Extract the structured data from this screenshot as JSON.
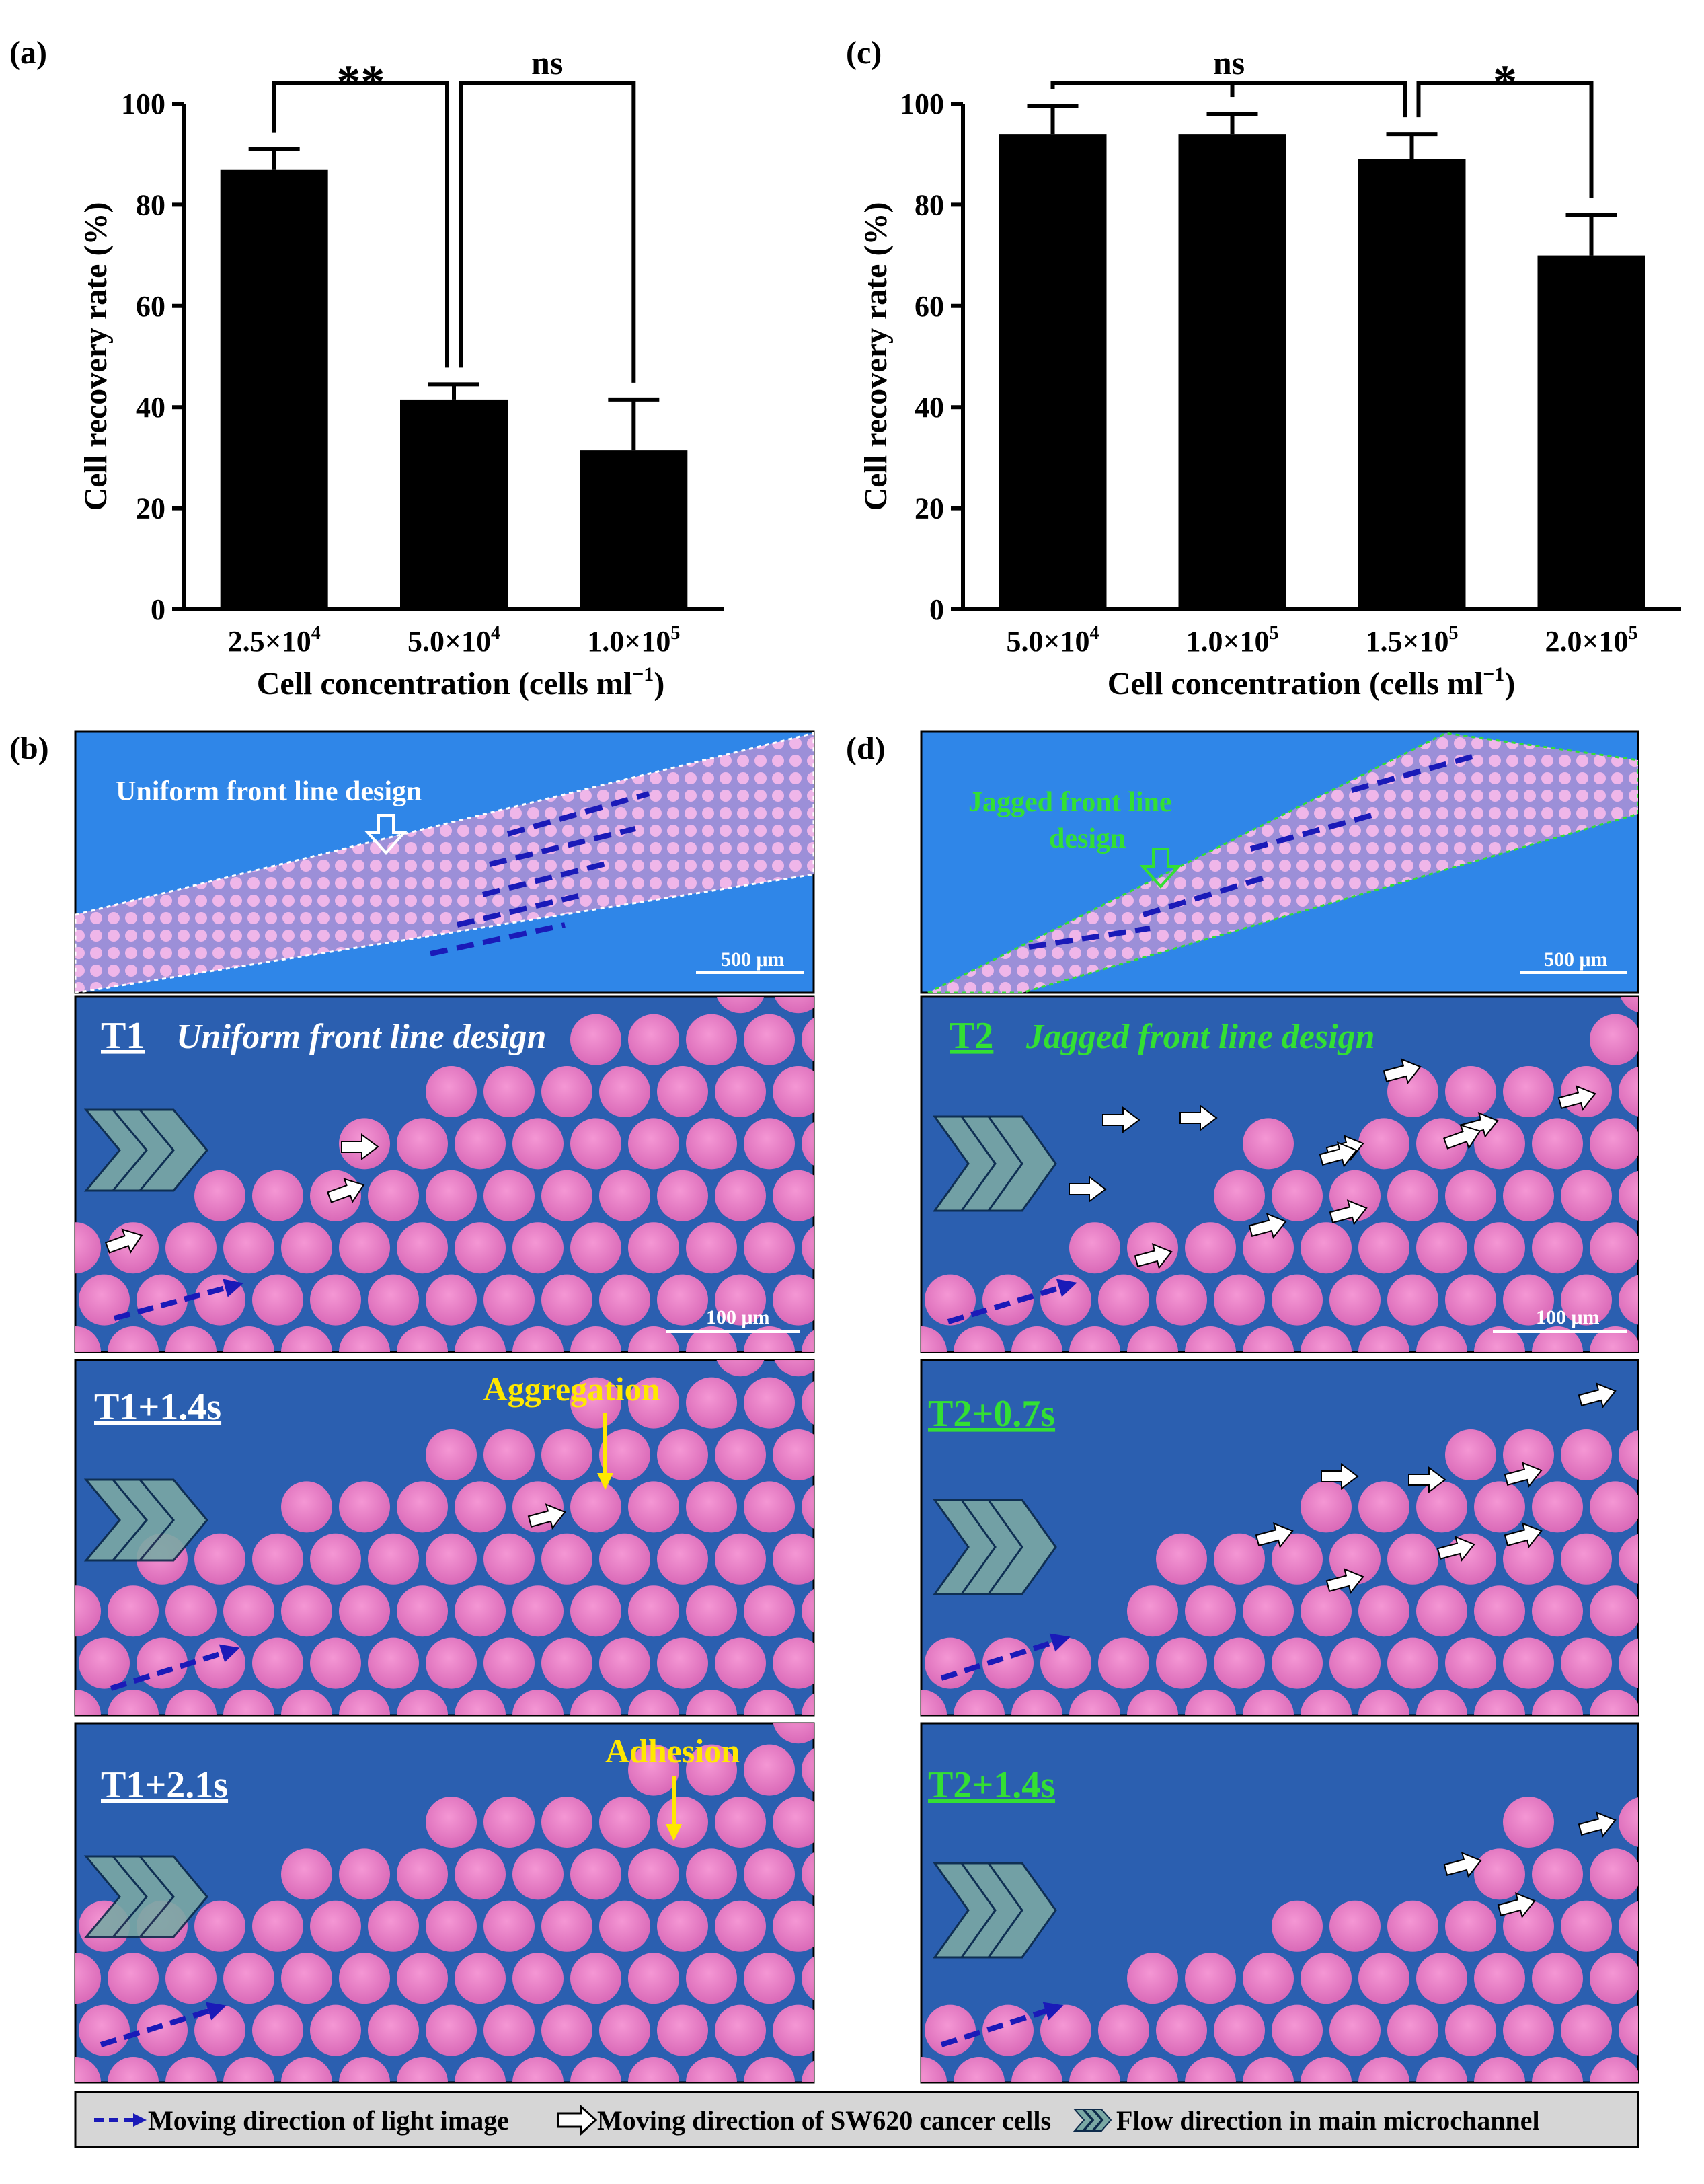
{
  "chart_data": [
    {
      "panel": "(a)",
      "type": "bar",
      "categories": [
        "2.5×10^4",
        "5.0×10^4",
        "1.0×10^5"
      ],
      "category_labels": [
        {
          "mantissa": "2.5×10",
          "exp": "4"
        },
        {
          "mantissa": "5.0×10",
          "exp": "4"
        },
        {
          "mantissa": "1.0×10",
          "exp": "5"
        }
      ],
      "values": [
        87,
        41.5,
        31.5
      ],
      "errors": [
        4,
        3,
        10
      ],
      "ylabel": "Cell recovery rate (%)",
      "xlabel_main": "Cell concentration (cells ml",
      "xlabel_exp": "−1",
      "xlabel_tail": ")",
      "ylim": [
        0,
        100
      ],
      "yticks": [
        "0",
        "20",
        "40",
        "60",
        "80",
        "100"
      ],
      "bar_color": "#000000",
      "significance": [
        {
          "from": 0,
          "to": 1,
          "label": "**"
        },
        {
          "from": 1,
          "to": 2,
          "label": "ns"
        }
      ]
    },
    {
      "panel": "(c)",
      "type": "bar",
      "categories": [
        "5.0×10^4",
        "1.0×10^5",
        "1.5×10^5",
        "2.0×10^5"
      ],
      "category_labels": [
        {
          "mantissa": "5.0×10",
          "exp": "4"
        },
        {
          "mantissa": "1.0×10",
          "exp": "5"
        },
        {
          "mantissa": "1.5×10",
          "exp": "5"
        },
        {
          "mantissa": "2.0×10",
          "exp": "5"
        }
      ],
      "values": [
        94,
        94,
        89,
        70
      ],
      "errors": [
        5.5,
        4,
        5,
        8
      ],
      "ylabel": "Cell recovery rate (%)",
      "xlabel_main": "Cell concentration (cells ml",
      "xlabel_exp": "−1",
      "xlabel_tail": ")",
      "ylim": [
        0,
        100
      ],
      "yticks": [
        "0",
        "20",
        "40",
        "60",
        "80",
        "100"
      ],
      "bar_color": "#000000",
      "significance": [
        {
          "from": 0,
          "to": 2,
          "label": "ns"
        },
        {
          "from": 2,
          "to": 3,
          "label": "*"
        }
      ]
    }
  ],
  "panels": {
    "a": "(a)",
    "b": "(b)",
    "c": "(c)",
    "d": "(d)"
  },
  "images": {
    "b_overview_label": "Uniform front line design",
    "b_scale_overview": "500 μm",
    "b_frame1_tag": "T1",
    "b_frame1_title": "Uniform front line design",
    "b_scale_frame": "100 μm",
    "b_frame2_tag": "T1+1.4s",
    "b_frame2_note": "Aggregation",
    "b_frame3_tag": "T1+2.1s",
    "b_frame3_note": "Adhesion",
    "d_overview_label_1": "Jagged front line",
    "d_overview_label_2": "design",
    "d_scale_overview": "500 μm",
    "d_frame1_tag": "T2",
    "d_frame1_title": "Jagged front line design",
    "d_scale_frame": "100 μm",
    "d_frame2_tag": "T2+0.7s",
    "d_frame3_tag": "T2+1.4s"
  },
  "colors": {
    "channel_blue": "#2f86e8",
    "frame_blue": "#2b5fb0",
    "droplet_pink": "#f07ec6",
    "green_text": "#33e033",
    "yellow_text": "#ffe800",
    "arrow_navy": "#1a1ab8",
    "chevron": "#7aa8a4"
  },
  "legend": {
    "item1": "Moving direction of light image",
    "item2": "Moving direction of SW620 cancer cells",
    "item3": "Flow direction in main microchannel"
  }
}
